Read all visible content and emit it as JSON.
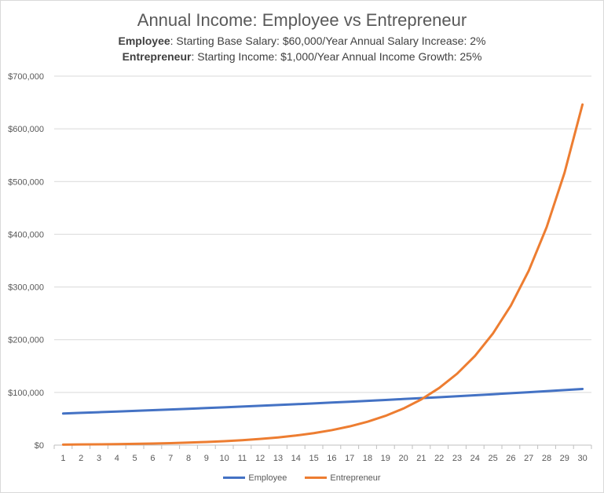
{
  "chart_data": {
    "type": "line",
    "title": "Annual Income: Employee vs Entrepreneur",
    "subtitle_lines": [
      {
        "bold": "Employee",
        "text": ": Starting Base Salary: $60,000/Year  Annual Salary Increase: 2%"
      },
      {
        "bold": "Entrepreneur",
        "text": ": Starting Income: $1,000/Year  Annual Income Growth:  25%"
      }
    ],
    "x": [
      1,
      2,
      3,
      4,
      5,
      6,
      7,
      8,
      9,
      10,
      11,
      12,
      13,
      14,
      15,
      16,
      17,
      18,
      19,
      20,
      21,
      22,
      23,
      24,
      25,
      26,
      27,
      28,
      29,
      30
    ],
    "ylim": [
      0,
      700000
    ],
    "yticks": [
      0,
      100000,
      200000,
      300000,
      400000,
      500000,
      600000,
      700000
    ],
    "ytick_labels": [
      "$0",
      "$100,000",
      "$200,000",
      "$300,000",
      "$400,000",
      "$500,000",
      "$600,000",
      "$700,000"
    ],
    "grid": true,
    "legend_position": "bottom",
    "series": [
      {
        "name": "Employee",
        "color": "#4472C4",
        "values": [
          60000,
          61200,
          62424,
          63672,
          64946,
          66245,
          67570,
          68921,
          70300,
          71706,
          73140,
          74602,
          76095,
          77616,
          79169,
          80752,
          82367,
          84014,
          85695,
          87409,
          89157,
          90940,
          92759,
          94614,
          96506,
          98436,
          100405,
          102413,
          104461,
          106551
        ]
      },
      {
        "name": "Entrepreneur",
        "color": "#ED7D31",
        "values": [
          1000,
          1250,
          1563,
          1953,
          2441,
          3052,
          3815,
          4768,
          5960,
          7451,
          9313,
          11642,
          14552,
          18190,
          22737,
          28422,
          35527,
          44409,
          55511,
          69389,
          86736,
          108420,
          135525,
          169407,
          211758,
          264698,
          330872,
          413590,
          516988,
          646235
        ]
      }
    ]
  }
}
